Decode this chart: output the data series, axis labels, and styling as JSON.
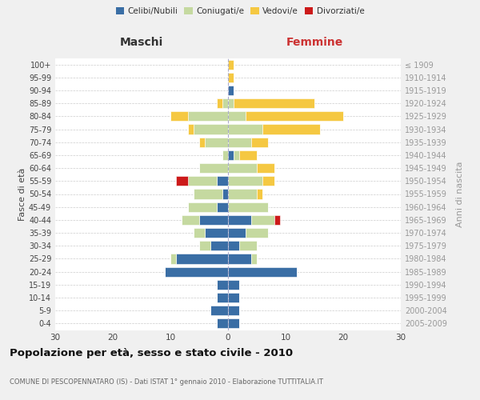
{
  "age_groups": [
    "100+",
    "95-99",
    "90-94",
    "85-89",
    "80-84",
    "75-79",
    "70-74",
    "65-69",
    "60-64",
    "55-59",
    "50-54",
    "45-49",
    "40-44",
    "35-39",
    "30-34",
    "25-29",
    "20-24",
    "15-19",
    "10-14",
    "5-9",
    "0-4"
  ],
  "birth_years": [
    "≤ 1909",
    "1910-1914",
    "1915-1919",
    "1920-1924",
    "1925-1929",
    "1930-1934",
    "1935-1939",
    "1940-1944",
    "1945-1949",
    "1950-1954",
    "1955-1959",
    "1960-1964",
    "1965-1969",
    "1970-1974",
    "1975-1979",
    "1980-1984",
    "1985-1989",
    "1990-1994",
    "1995-1999",
    "2000-2004",
    "2005-2009"
  ],
  "colors": {
    "celibi": "#3a6ea5",
    "coniugati": "#c5d9a0",
    "vedovi": "#f5c842",
    "divorziati": "#cc1a1a"
  },
  "males": {
    "celibi": [
      0,
      0,
      0,
      0,
      0,
      0,
      0,
      0,
      0,
      2,
      1,
      2,
      5,
      4,
      3,
      9,
      11,
      2,
      2,
      3,
      2
    ],
    "coniugati": [
      0,
      0,
      0,
      1,
      7,
      6,
      4,
      1,
      5,
      5,
      5,
      5,
      3,
      2,
      2,
      1,
      0,
      0,
      0,
      0,
      0
    ],
    "vedovi": [
      0,
      0,
      0,
      1,
      3,
      1,
      1,
      0,
      0,
      0,
      0,
      0,
      0,
      0,
      0,
      0,
      0,
      0,
      0,
      0,
      0
    ],
    "divorziati": [
      0,
      0,
      0,
      0,
      0,
      0,
      0,
      0,
      0,
      2,
      0,
      0,
      0,
      0,
      0,
      0,
      0,
      0,
      0,
      0,
      0
    ]
  },
  "females": {
    "celibi": [
      0,
      0,
      1,
      0,
      0,
      0,
      0,
      1,
      0,
      0,
      0,
      0,
      4,
      3,
      2,
      4,
      12,
      2,
      2,
      2,
      2
    ],
    "coniugati": [
      0,
      0,
      0,
      1,
      3,
      6,
      4,
      1,
      5,
      6,
      5,
      7,
      4,
      4,
      3,
      1,
      0,
      0,
      0,
      0,
      0
    ],
    "vedovi": [
      1,
      1,
      0,
      14,
      17,
      10,
      3,
      3,
      3,
      2,
      1,
      0,
      0,
      0,
      0,
      0,
      0,
      0,
      0,
      0,
      0
    ],
    "divorziati": [
      0,
      0,
      0,
      0,
      0,
      0,
      0,
      0,
      0,
      0,
      0,
      0,
      1,
      0,
      0,
      0,
      0,
      0,
      0,
      0,
      0
    ]
  },
  "xlim": 30,
  "title": "Popolazione per età, sesso e stato civile - 2010",
  "subtitle": "COMUNE DI PESCOPENNATARO (IS) - Dati ISTAT 1° gennaio 2010 - Elaborazione TUTTITALIA.IT",
  "ylabel_left": "Fasce di età",
  "ylabel_right": "Anni di nascita",
  "xlabel_left": "Maschi",
  "xlabel_right": "Femmine",
  "legend_labels": [
    "Celibi/Nubili",
    "Coniugati/e",
    "Vedovi/e",
    "Divorziati/e"
  ],
  "background_color": "#f0f0f0",
  "plot_background": "#ffffff"
}
